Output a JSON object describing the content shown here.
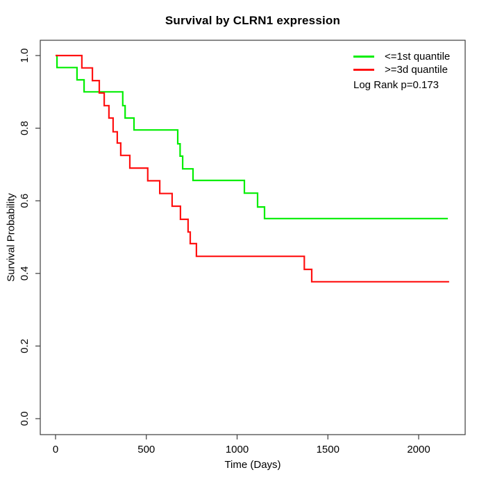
{
  "title": "Survival by CLRN1 expression",
  "chart_data": {
    "type": "line",
    "subtype": "kaplan-meier-step",
    "title": "Survival by CLRN1 expression",
    "xlabel": "Time (Days)",
    "ylabel": "Survival Probability",
    "xlim": [
      0,
      2200
    ],
    "ylim": [
      0.0,
      1.0
    ],
    "x_ticks": [
      0,
      500,
      1000,
      1500,
      2000
    ],
    "y_ticks": [
      "0.0",
      "0.2",
      "0.4",
      "0.6",
      "0.8",
      "1.0"
    ],
    "grid": false,
    "box": true,
    "legend": {
      "position": "top-right",
      "entries": [
        {
          "name": "<=1st quantile",
          "color": "#00ee00"
        },
        {
          "name": ">=3d quantile",
          "color": "#ff1111"
        }
      ]
    },
    "annotation": "Log Rank p=0.173",
    "series": [
      {
        "name": "<=1st quantile",
        "color": "#00ee00",
        "end_time": 2161,
        "points": [
          [
            0,
            1.0
          ],
          [
            8,
            0.967
          ],
          [
            118,
            0.933
          ],
          [
            157,
            0.9
          ],
          [
            370,
            0.862
          ],
          [
            383,
            0.828
          ],
          [
            432,
            0.795
          ],
          [
            673,
            0.757
          ],
          [
            686,
            0.723
          ],
          [
            700,
            0.688
          ],
          [
            757,
            0.656
          ],
          [
            1040,
            0.621
          ],
          [
            1113,
            0.583
          ],
          [
            1151,
            0.551
          ]
        ]
      },
      {
        "name": ">=3d quantile",
        "color": "#ff1111",
        "end_time": 2168,
        "points": [
          [
            0,
            1.0
          ],
          [
            145,
            0.966
          ],
          [
            203,
            0.931
          ],
          [
            241,
            0.897
          ],
          [
            268,
            0.862
          ],
          [
            294,
            0.828
          ],
          [
            317,
            0.79
          ],
          [
            340,
            0.759
          ],
          [
            359,
            0.725
          ],
          [
            409,
            0.69
          ],
          [
            508,
            0.655
          ],
          [
            574,
            0.62
          ],
          [
            642,
            0.585
          ],
          [
            688,
            0.549
          ],
          [
            730,
            0.514
          ],
          [
            742,
            0.482
          ],
          [
            776,
            0.447
          ],
          [
            1370,
            0.411
          ],
          [
            1411,
            0.377
          ]
        ]
      }
    ]
  }
}
